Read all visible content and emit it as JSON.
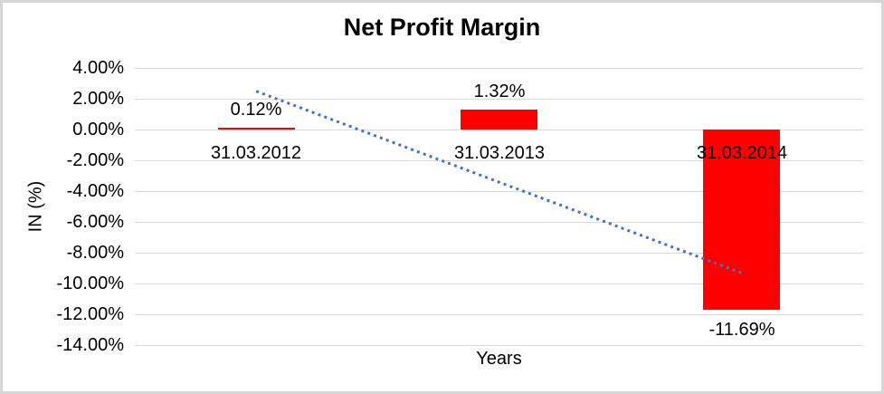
{
  "frame": {
    "background": "#FFFFFF",
    "border_color": "#D6D6D6"
  },
  "chart_data": {
    "type": "bar",
    "title": "Net Profit Margin",
    "xlabel": "Years",
    "ylabel": "IN (%)",
    "categories": [
      "31.03.2012",
      "31.03.2013",
      "31.03.2014"
    ],
    "series": [
      {
        "name": "Net Profit Margin",
        "values": [
          0.12,
          1.32,
          -11.69
        ]
      }
    ],
    "data_labels": [
      "0.12%",
      "1.32%",
      "-11.69%"
    ],
    "ylim": [
      -14,
      4
    ],
    "yticks": [
      4,
      2,
      0,
      -2,
      -4,
      -6,
      -8,
      -10,
      -12,
      -14
    ],
    "ytick_labels": [
      "4.00%",
      "2.00%",
      "0.00%",
      "-2.00%",
      "-4.00%",
      "-6.00%",
      "-8.00%",
      "-10.00%",
      "-12.00%",
      "-14.00%"
    ],
    "grid": true,
    "legend": "none",
    "bar_color": "#FF0000",
    "gridline_color": "#D9D9D9",
    "text_color": "#000000",
    "trendline": {
      "type": "linear",
      "style": "dotted",
      "color": "#4472C4",
      "start_value": 2.49,
      "end_value": -9.32
    }
  }
}
